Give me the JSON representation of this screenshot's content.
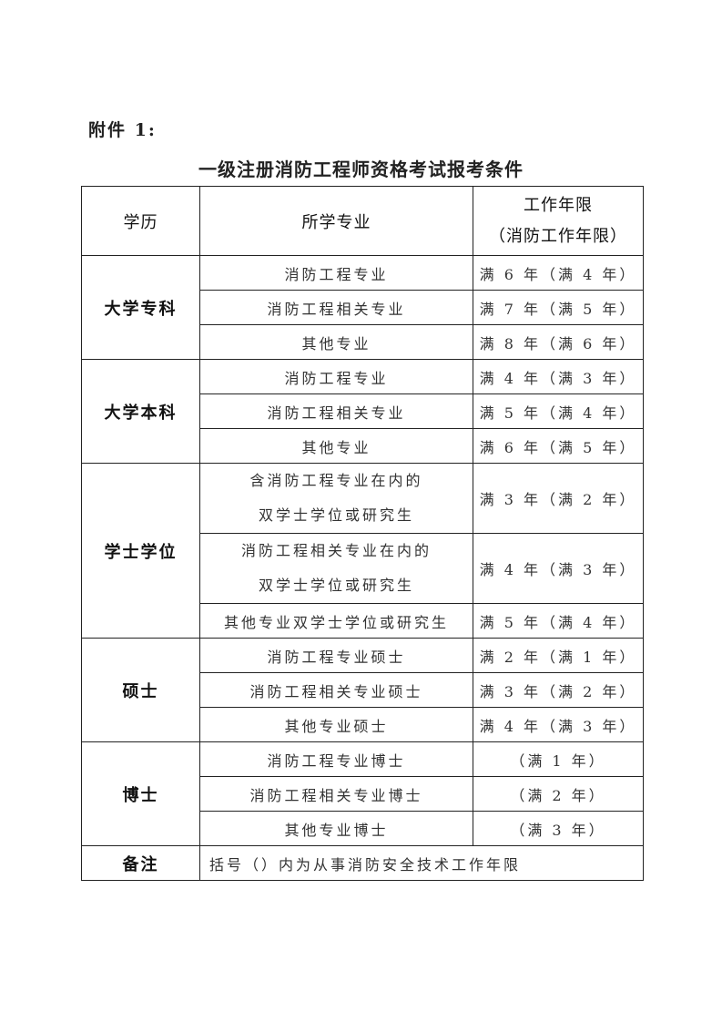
{
  "attachment_label": "附件 1:",
  "title": "一级注册消防工程师资格考试报考条件",
  "table": {
    "headers": {
      "education": "学历",
      "major": "所学专业",
      "years_line1": "工作年限",
      "years_line2": "（消防工作年限）"
    },
    "groups": [
      {
        "level": "大学专科",
        "rows": [
          {
            "major": [
              "消防工程专业"
            ],
            "years": "满 6 年（满 4 年）"
          },
          {
            "major": [
              "消防工程相关专业"
            ],
            "years": "满 7 年（满 5 年）"
          },
          {
            "major": [
              "其他专业"
            ],
            "years": "满 8 年（满 6 年）"
          }
        ]
      },
      {
        "level": "大学本科",
        "rows": [
          {
            "major": [
              "消防工程专业"
            ],
            "years": "满 4 年（满 3 年）"
          },
          {
            "major": [
              "消防工程相关专业"
            ],
            "years": "满 5 年（满 4 年）"
          },
          {
            "major": [
              "其他专业"
            ],
            "years": "满 6 年（满 5 年）"
          }
        ]
      },
      {
        "level": "学士学位",
        "rows": [
          {
            "major": [
              "含消防工程专业在内的",
              "双学士学位或研究生"
            ],
            "years": "满 3 年（满 2 年）"
          },
          {
            "major": [
              "消防工程相关专业在内的",
              "双学士学位或研究生"
            ],
            "years": "满 4 年（满 3 年）"
          },
          {
            "major": [
              "其他专业双学士学位或研究生"
            ],
            "years": "满 5 年（满 4 年）"
          }
        ]
      },
      {
        "level": "硕士",
        "rows": [
          {
            "major": [
              "消防工程专业硕士"
            ],
            "years": "满 2 年（满 1 年）"
          },
          {
            "major": [
              "消防工程相关专业硕士"
            ],
            "years": "满 3 年（满 2 年）"
          },
          {
            "major": [
              "其他专业硕士"
            ],
            "years": "满 4 年（满 3 年）"
          }
        ]
      },
      {
        "level": "博士",
        "rows": [
          {
            "major": [
              "消防工程专业博士"
            ],
            "years": "（满 1 年）"
          },
          {
            "major": [
              "消防工程相关专业博士"
            ],
            "years": "（满 2 年）"
          },
          {
            "major": [
              "其他专业博士"
            ],
            "years": "（满 3 年）"
          }
        ]
      }
    ],
    "note_label": "备注",
    "note_text": "括号（）内为从事消防安全技术工作年限"
  }
}
